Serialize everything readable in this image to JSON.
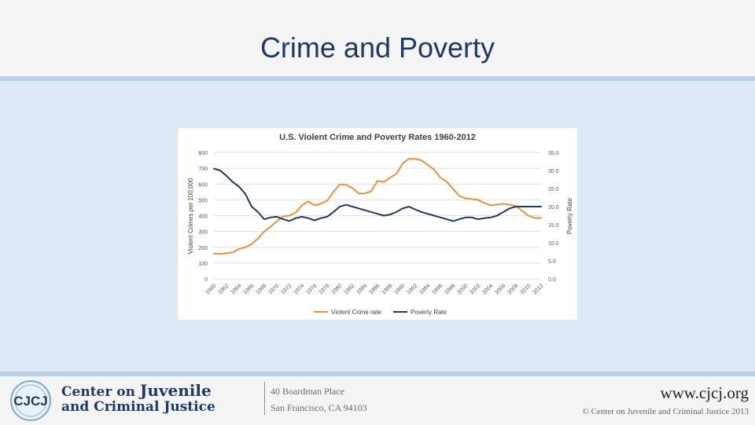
{
  "slide": {
    "title": "Crime and Poverty"
  },
  "colors": {
    "crime": "#e8923e",
    "poverty": "#203864",
    "title": "#1f3864"
  },
  "chart_data": {
    "type": "line",
    "title": "U.S. Violent Crime and Poverty Rates 1960-2012",
    "ylabel": "Violent  Crimes per 100,000",
    "y2label": "Poverty Rate",
    "ylim": [
      0,
      800
    ],
    "y2lim": [
      0,
      35
    ],
    "y_ticks": [
      "800",
      "700",
      "600",
      "500",
      "400",
      "300",
      "200",
      "100",
      "0"
    ],
    "y2_ticks": [
      "35.0",
      "30.0",
      "25.0",
      "20.0",
      "15.0",
      "10.0",
      "5.0",
      "0.0"
    ],
    "x_ticks": [
      "1960",
      "1962",
      "1964",
      "1966",
      "1968",
      "1970",
      "1972",
      "1974",
      "1976",
      "1978",
      "1980",
      "1982",
      "1984",
      "1986",
      "1988",
      "1990",
      "1992",
      "1994",
      "1996",
      "1998",
      "2000",
      "2002",
      "2004",
      "2006",
      "2008",
      "2010",
      "2012"
    ],
    "x": [
      1960,
      1961,
      1962,
      1963,
      1964,
      1965,
      1966,
      1967,
      1968,
      1969,
      1970,
      1971,
      1972,
      1973,
      1974,
      1975,
      1976,
      1977,
      1978,
      1979,
      1980,
      1981,
      1982,
      1983,
      1984,
      1985,
      1986,
      1987,
      1988,
      1989,
      1990,
      1991,
      1992,
      1993,
      1994,
      1995,
      1996,
      1997,
      1998,
      1999,
      2000,
      2001,
      2002,
      2003,
      2004,
      2005,
      2006,
      2007,
      2008,
      2009,
      2010,
      2011,
      2012
    ],
    "series": [
      {
        "name": "Violent Crime rate",
        "axis": "left",
        "values": [
          160,
          158,
          162,
          168,
          190,
          200,
          220,
          255,
          300,
          330,
          365,
          395,
          400,
          420,
          465,
          490,
          465,
          475,
          495,
          550,
          598,
          595,
          575,
          540,
          540,
          555,
          620,
          612,
          640,
          665,
          730,
          760,
          760,
          750,
          720,
          690,
          640,
          615,
          570,
          525,
          510,
          505,
          500,
          480,
          465,
          470,
          475,
          470,
          460,
          430,
          400,
          385,
          385
        ]
      },
      {
        "name": "Poverty Rate",
        "axis": "right",
        "values": [
          30.5,
          30.0,
          28.5,
          26.8,
          25.5,
          23.5,
          20.0,
          18.5,
          16.5,
          17.0,
          17.2,
          16.5,
          16.0,
          16.8,
          17.2,
          16.8,
          16.2,
          16.8,
          17.2,
          18.5,
          20.0,
          20.5,
          20.0,
          19.5,
          19.0,
          18.5,
          18.0,
          17.5,
          17.8,
          18.5,
          19.5,
          20.0,
          19.2,
          18.5,
          18.0,
          17.5,
          17.0,
          16.5,
          16.0,
          16.5,
          17.0,
          17.0,
          16.5,
          16.8,
          17.0,
          17.5,
          18.5,
          19.5,
          20.0,
          20.0,
          20.0,
          20.0,
          20.0
        ]
      }
    ],
    "legend": [
      "Violent Crime rate",
      "Poverty Rate"
    ],
    "legend_position": "bottom"
  },
  "footer": {
    "logo_mark": "CJCJ",
    "logo_line1a": "Center on ",
    "logo_line1b": "Juvenile",
    "logo_line2": "and Criminal Justice",
    "address_line1": "40 Boardman Place",
    "address_line2": "San Francisco, CA 94103",
    "website": "www.cjcj.org",
    "copyright": "© Center on Juvenile and Criminal Justice 2013"
  }
}
